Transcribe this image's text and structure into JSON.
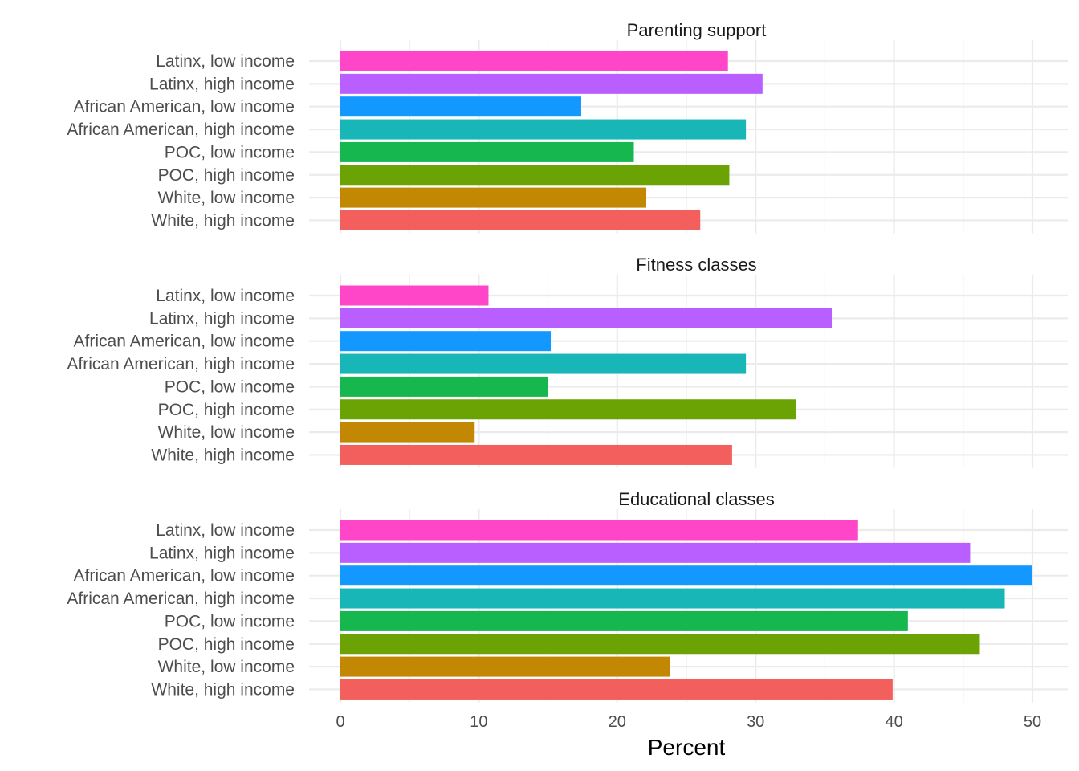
{
  "chart_data": {
    "type": "bar",
    "orientation": "horizontal",
    "xlabel": "Percent",
    "xlim": [
      0,
      50
    ],
    "x_ticks": [
      0,
      10,
      20,
      30,
      40,
      50
    ],
    "grid": true,
    "legend": "none",
    "categories": [
      "Latinx, low income",
      "Latinx, high income",
      "African American, low income",
      "African American, high income",
      "POC, low income",
      "POC, high income",
      "White, low income",
      "White, high income"
    ],
    "colors": [
      "#FF45C8",
      "#B95FFF",
      "#1398FF",
      "#19B6B8",
      "#17B750",
      "#6AA303",
      "#C28804",
      "#F25F5C"
    ],
    "panels": [
      {
        "title": "Parenting support",
        "values": [
          28.0,
          30.5,
          17.4,
          29.3,
          21.2,
          28.1,
          22.1,
          26.0
        ]
      },
      {
        "title": "Fitness classes",
        "values": [
          10.7,
          35.5,
          15.2,
          29.3,
          15.0,
          32.9,
          9.7,
          28.3
        ]
      },
      {
        "title": "Educational classes",
        "values": [
          37.4,
          45.5,
          50.0,
          48.0,
          41.0,
          46.2,
          23.8,
          39.9
        ]
      }
    ]
  }
}
